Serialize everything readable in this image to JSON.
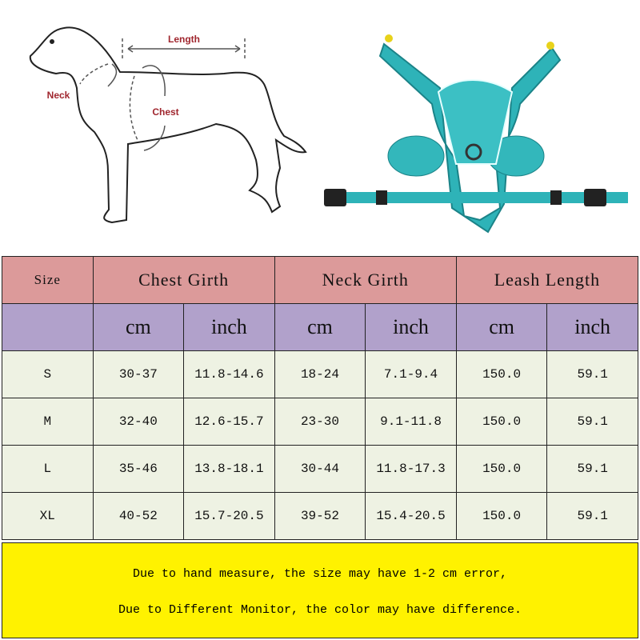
{
  "diagram": {
    "labels": {
      "length": "Length",
      "neck": "Neck",
      "chest": "Chest"
    },
    "label_color": "#a0262e",
    "harness_color": "#2eb3b8"
  },
  "table": {
    "headers": [
      "Size",
      "Chest Girth",
      "Neck Girth",
      "Leash Length"
    ],
    "units": [
      "cm",
      "inch",
      "cm",
      "inch",
      "cm",
      "inch"
    ],
    "rows": [
      [
        "S",
        "30-37",
        "11.8-14.6",
        "18-24",
        "7.1-9.4",
        "150.0",
        "59.1"
      ],
      [
        "M",
        "32-40",
        "12.6-15.7",
        "23-30",
        "9.1-11.8",
        "150.0",
        "59.1"
      ],
      [
        "L",
        "35-46",
        "13.8-18.1",
        "30-44",
        "11.8-17.3",
        "150.0",
        "59.1"
      ],
      [
        "XL",
        "40-52",
        "15.7-20.5",
        "39-52",
        "15.4-20.5",
        "150.0",
        "59.1"
      ]
    ],
    "colors": {
      "header": "#dc9a9a",
      "units": "#b1a1cb",
      "rows": "#eef2e3"
    }
  },
  "note": {
    "line1": "Due to hand measure, the size may have 1-2 cm error,",
    "line2": "Due to Different Monitor, the color may have difference.",
    "background": "#fff200"
  }
}
